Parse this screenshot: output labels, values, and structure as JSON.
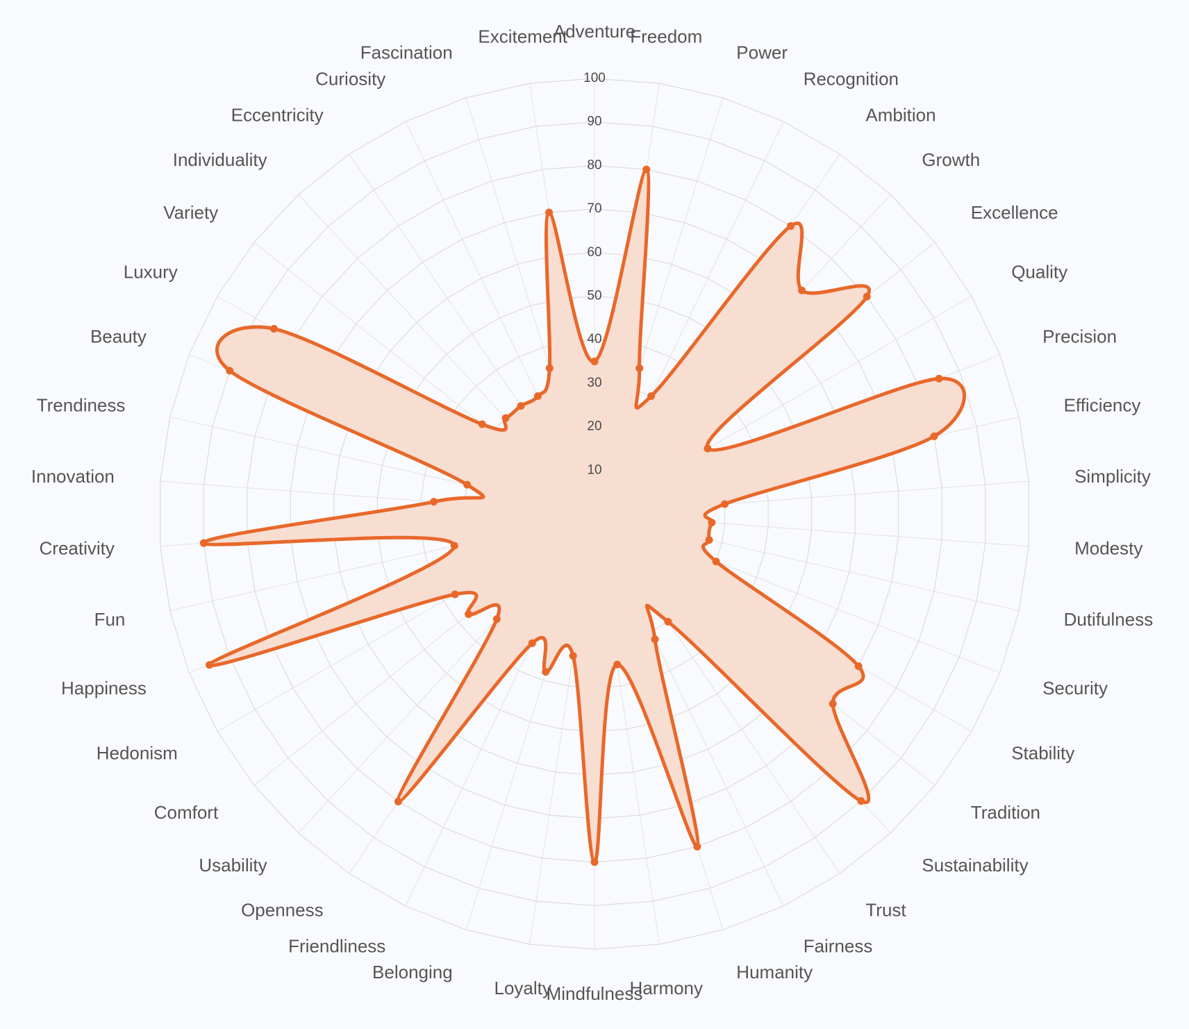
{
  "chart_data": {
    "type": "radar",
    "title": "",
    "categories": [
      "Adventure",
      "Freedom",
      "Power",
      "Recognition",
      "Ambition",
      "Growth",
      "Excellence",
      "Quality",
      "Precision",
      "Efficiency",
      "Simplicity",
      "Modesty",
      "Dutifulness",
      "Security",
      "Stability",
      "Tradition",
      "Sustainability",
      "Trust",
      "Fairness",
      "Humanity",
      "Harmony",
      "Mindfulness",
      "Loyalty",
      "Belonging",
      "Friendliness",
      "Openness",
      "Usability",
      "Comfort",
      "Hedonism",
      "Happiness",
      "Fun",
      "Creativity",
      "Innovation",
      "Trendiness",
      "Beauty",
      "Luxury",
      "Variety",
      "Individuality",
      "Eccentricity",
      "Curiosity",
      "Fascination",
      "Excitement"
    ],
    "series": [
      {
        "values": [
          35,
          80,
          35,
          30,
          80,
          70,
          80,
          30,
          85,
          80,
          30,
          27,
          27,
          30,
          70,
          70,
          90,
          30,
          32,
          80,
          35,
          80,
          33,
          38,
          33,
          80,
          33,
          37,
          37,
          95,
          33,
          90,
          37,
          30,
          90,
          85,
          33,
          30,
          30,
          30,
          35,
          70
        ]
      }
    ],
    "radial_range": [
      0,
      100
    ],
    "radial_ticks": [
      10,
      20,
      30,
      40,
      50,
      60,
      70,
      80,
      90,
      100
    ],
    "grid": true,
    "legend": "none",
    "colors": {
      "line": "#E8682A",
      "fill": "#F8DDD1",
      "grid": "#DCDCDC",
      "background": "#F9FAFD",
      "tick_text": "#4A4A4A",
      "label_text": "#555555"
    }
  }
}
